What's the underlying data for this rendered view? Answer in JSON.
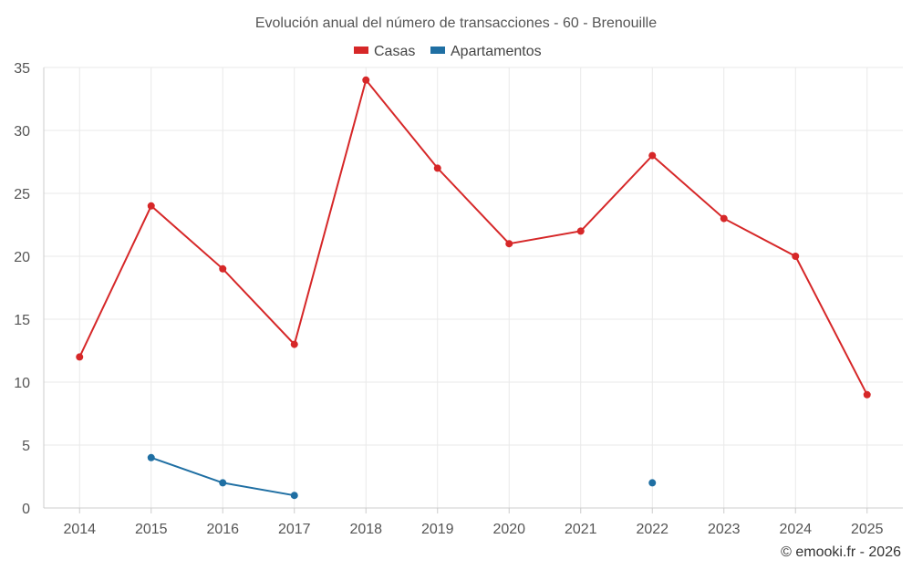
{
  "chart_data": {
    "type": "line",
    "title": "Evolución anual del número de transacciones - 60 - Brenouille",
    "xlabel": "",
    "ylabel": "",
    "categories": [
      "2014",
      "2015",
      "2016",
      "2017",
      "2018",
      "2019",
      "2020",
      "2021",
      "2022",
      "2023",
      "2024",
      "2025"
    ],
    "ylim": [
      0,
      35
    ],
    "yticks": [
      0,
      5,
      10,
      15,
      20,
      25,
      30,
      35
    ],
    "grid": true,
    "legend_position": "top-center",
    "series": [
      {
        "name": "Casas",
        "color": "#d62728",
        "values": [
          12,
          24,
          19,
          13,
          34,
          27,
          21,
          22,
          28,
          23,
          20,
          9
        ]
      },
      {
        "name": "Apartamentos",
        "color": "#1f6fa3",
        "values": [
          null,
          4,
          2,
          1,
          null,
          null,
          null,
          null,
          2,
          null,
          null,
          null
        ]
      }
    ]
  },
  "credit": "© emooki.fr - 2026"
}
